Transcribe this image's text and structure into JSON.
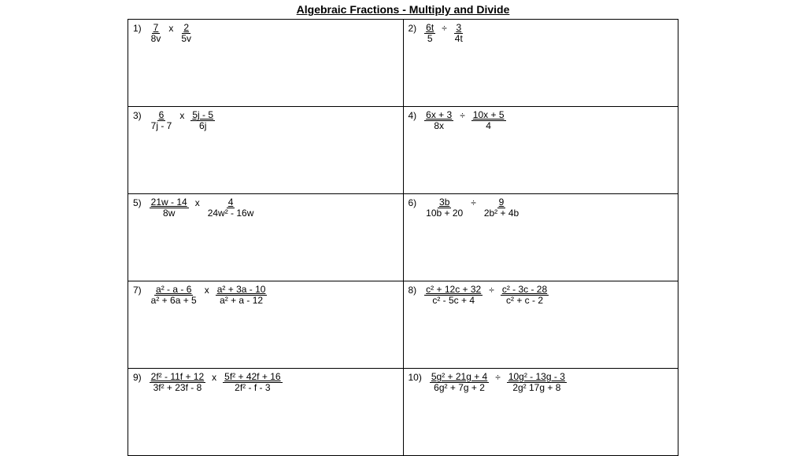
{
  "title": "Algebraic Fractions - Multiply and Divide",
  "problems": [
    {
      "num": "1)",
      "f1n": "7",
      "f1d": "8v",
      "op": "x",
      "f2n": "2",
      "f2d": "5v"
    },
    {
      "num": "2)",
      "f1n": "6t",
      "f1d": "5",
      "op": "÷",
      "f2n": "3",
      "f2d": "4t"
    },
    {
      "num": "3)",
      "f1n": "6",
      "f1d": "7j - 7",
      "op": "x",
      "f2n": "5j - 5",
      "f2d": "6j"
    },
    {
      "num": "4)",
      "f1n": "6x + 3",
      "f1d": "8x",
      "op": "÷",
      "f2n": "10x + 5",
      "f2d": "4"
    },
    {
      "num": "5)",
      "f1n": "21w - 14",
      "f1d": "8w",
      "op": "x",
      "f2n": "4",
      "f2d": "24w² - 16w"
    },
    {
      "num": "6)",
      "f1n": "3b",
      "f1d": "10b + 20",
      "op": "÷",
      "f2n": "9",
      "f2d": "2b² + 4b"
    },
    {
      "num": "7)",
      "f1n": "a² - a - 6",
      "f1d": "a² + 6a + 5",
      "op": "x",
      "f2n": "a² + 3a - 10",
      "f2d": "a² + a - 12"
    },
    {
      "num": "8)",
      "f1n": "c² + 12c + 32",
      "f1d": "c² - 5c + 4",
      "op": "÷",
      "f2n": "c² - 3c - 28",
      "f2d": "c² + c - 2"
    },
    {
      "num": "9)",
      "f1n": "2f² - 11f + 12",
      "f1d": "3f² + 23f - 8",
      "op": "x",
      "f2n": "5f² + 42f + 16",
      "f2d": "2f² - f - 3"
    },
    {
      "num": "10)",
      "f1n": "5g² + 21g + 4",
      "f1d": "6g² + 7g + 2",
      "op": "÷",
      "f2n": "10g² - 13g - 3",
      "f2d": "2g² 17g + 8"
    }
  ]
}
